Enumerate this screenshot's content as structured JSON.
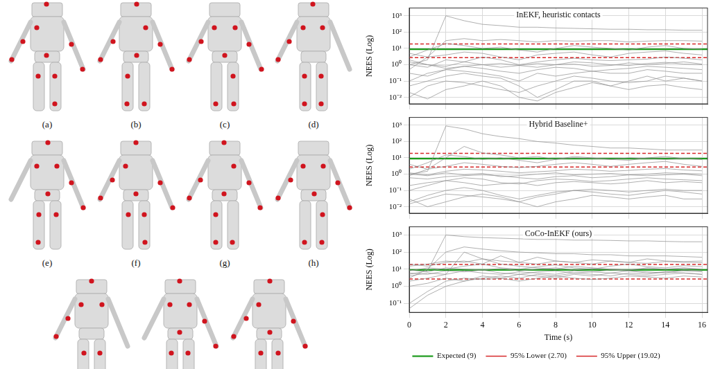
{
  "figure": {
    "captions": [
      "(a)",
      "(b)",
      "(c)",
      "(d)",
      "(e)",
      "(f)",
      "(g)",
      "(h)"
    ]
  },
  "chart_data": [
    {
      "type": "line",
      "title": "InEKF, heuristic contacts",
      "y_label": "NEES (Log)",
      "x": [
        0,
        1,
        2,
        3,
        4,
        5,
        6,
        7,
        8,
        9,
        10,
        11,
        12,
        13,
        14,
        15,
        16
      ],
      "xlim": [
        0,
        16.3
      ],
      "xticks": [
        0,
        2,
        4,
        6,
        8,
        10,
        12,
        14,
        16
      ],
      "ylim": [
        0.004,
        3000
      ],
      "yticks": [
        {
          "value": 0.01,
          "label": "10⁻²"
        },
        {
          "value": 0.1,
          "label": "10⁻¹"
        },
        {
          "value": 1,
          "label": "10⁰"
        },
        {
          "value": 10,
          "label": "10¹"
        },
        {
          "value": 100,
          "label": "10²"
        },
        {
          "value": 1000,
          "label": "10³"
        }
      ],
      "log": "y",
      "grid": true,
      "tick_labels": "y",
      "series": [
        {
          "color": "#8c8c8c",
          "values": [
            1,
            2,
            1000,
            500,
            300,
            250,
            200,
            200,
            180,
            170,
            160,
            150,
            150,
            140,
            140,
            130,
            130
          ]
        },
        {
          "color": "#8c8c8c",
          "values": [
            0.5,
            3,
            30,
            40,
            30,
            35,
            30,
            25,
            30,
            28,
            30,
            30,
            25,
            28,
            30,
            30,
            28
          ]
        },
        {
          "color": "#8c8c8c",
          "values": [
            2,
            1,
            0.8,
            1.5,
            1,
            0.7,
            0.9,
            1.2,
            1,
            1.5,
            1.3,
            1,
            0.9,
            1.2,
            1.4,
            1.1,
            1
          ]
        },
        {
          "color": "#8c8c8c",
          "values": [
            0.3,
            0.2,
            0.5,
            0.4,
            0.3,
            0.2,
            0.1,
            0.3,
            0.2,
            0.3,
            0.4,
            0.3,
            0.3,
            0.5,
            0.4,
            0.3,
            0.3
          ]
        },
        {
          "color": "#8c8c8c",
          "values": [
            0.05,
            0.1,
            0.2,
            0.3,
            0.2,
            0.15,
            0.05,
            0.01,
            0.03,
            0.1,
            0.1,
            0.05,
            0.1,
            0.2,
            0.1,
            0.15,
            0.1
          ]
        },
        {
          "color": "#8c8c8c",
          "values": [
            5,
            3,
            4,
            6,
            5,
            3,
            2,
            4,
            5,
            6,
            4,
            3,
            5,
            6,
            7,
            5,
            4
          ]
        },
        {
          "color": "#8c8c8c",
          "values": [
            0.01,
            0.05,
            0.1,
            0.08,
            0.05,
            0.03,
            0.02,
            0.05,
            0.1,
            0.2,
            0.15,
            0.1,
            0.08,
            0.1,
            0.2,
            0.15,
            0.1
          ]
        },
        {
          "color": "#8c8c8c",
          "values": [
            1,
            0.7,
            2,
            1.5,
            3,
            2,
            1,
            1.5,
            2,
            2.5,
            2,
            1.8,
            2,
            2.2,
            3,
            2.5,
            2
          ]
        },
        {
          "color": "#8c8c8c",
          "values": [
            0.1,
            0.3,
            0.5,
            0.8,
            0.6,
            0.4,
            0.3,
            0.5,
            0.7,
            0.6,
            0.4,
            0.5,
            0.6,
            0.8,
            0.7,
            0.6,
            0.5
          ]
        },
        {
          "color": "#8c8c8c",
          "values": [
            3,
            8,
            20,
            15,
            10,
            12,
            8,
            6,
            10,
            15,
            12,
            10,
            8,
            12,
            15,
            10,
            9
          ]
        },
        {
          "color": "#8c8c8c",
          "values": [
            0.02,
            0.008,
            0.03,
            0.05,
            0.1,
            0.05,
            0.01,
            0.006,
            0.02,
            0.04,
            0.08,
            0.05,
            0.03,
            0.05,
            0.06,
            0.04,
            0.03
          ]
        },
        {
          "color": "#8c8c8c",
          "values": [
            1.5,
            1,
            0.6,
            0.8,
            1,
            1.2,
            0.9,
            0.7,
            1,
            1.1,
            0.8,
            0.9,
            1.3,
            1,
            1.2,
            1.5,
            1.1
          ]
        }
      ],
      "reference_lines": [
        {
          "name": "Expected (9)",
          "value": 9,
          "color": "#1a9a1a",
          "line_style": "solid"
        },
        {
          "name": "95% Lower (2.70)",
          "value": 2.7,
          "color": "#d62728",
          "line_style": "dashed"
        },
        {
          "name": "95% Upper (19.02)",
          "value": 19.02,
          "color": "#d62728",
          "line_style": "dashed"
        }
      ]
    },
    {
      "type": "line",
      "title": "Hybrid Baseline+",
      "y_label": "NEES (Log)",
      "x": [
        0,
        1,
        2,
        3,
        4,
        5,
        6,
        7,
        8,
        9,
        10,
        11,
        12,
        13,
        14,
        15,
        16
      ],
      "xlim": [
        0,
        16.3
      ],
      "xticks": [
        0,
        2,
        4,
        6,
        8,
        10,
        12,
        14,
        16
      ],
      "ylim": [
        0.004,
        3000
      ],
      "yticks": [
        {
          "value": 0.01,
          "label": "10⁻²"
        },
        {
          "value": 0.1,
          "label": "10⁻¹"
        },
        {
          "value": 1,
          "label": "10⁰"
        },
        {
          "value": 10,
          "label": "10¹"
        },
        {
          "value": 100,
          "label": "10²"
        },
        {
          "value": 1000,
          "label": "10³"
        }
      ],
      "log": "y",
      "grid": true,
      "tick_labels": "y",
      "series": [
        {
          "color": "#8c8c8c",
          "values": [
            1,
            1.5,
            900,
            600,
            300,
            200,
            150,
            100,
            80,
            60,
            50,
            40,
            40,
            35,
            30,
            30,
            30
          ]
        },
        {
          "color": "#8c8c8c",
          "values": [
            0.8,
            2,
            10,
            50,
            20,
            15,
            10,
            12,
            8,
            10,
            9,
            8,
            10,
            9,
            8,
            9,
            8
          ]
        },
        {
          "color": "#8c8c8c",
          "values": [
            1,
            0.8,
            1.2,
            0.9,
            1.1,
            0.7,
            0.8,
            1,
            1.2,
            0.9,
            1,
            1.1,
            0.9,
            1,
            1.2,
            1.1,
            1
          ]
        },
        {
          "color": "#8c8c8c",
          "values": [
            0.2,
            0.3,
            0.4,
            0.3,
            0.2,
            0.25,
            0.3,
            0.2,
            0.3,
            0.35,
            0.3,
            0.25,
            0.3,
            0.4,
            0.3,
            0.35,
            0.3
          ]
        },
        {
          "color": "#8c8c8c",
          "values": [
            0.02,
            0.05,
            0.1,
            0.15,
            0.1,
            0.05,
            0.03,
            0.05,
            0.08,
            0.1,
            0.12,
            0.1,
            0.08,
            0.1,
            0.12,
            0.1,
            0.1
          ]
        },
        {
          "color": "#8c8c8c",
          "values": [
            4,
            2,
            3,
            5,
            4,
            3,
            2.5,
            3,
            4,
            5,
            4,
            3,
            4,
            5,
            6,
            4,
            3
          ]
        },
        {
          "color": "#8c8c8c",
          "values": [
            0.015,
            0.03,
            0.06,
            0.05,
            0.04,
            0.03,
            0.02,
            0.04,
            0.06,
            0.1,
            0.08,
            0.06,
            0.05,
            0.07,
            0.1,
            0.08,
            0.06
          ]
        },
        {
          "color": "#8c8c8c",
          "values": [
            1.2,
            0.9,
            1.5,
            2,
            1.8,
            1.5,
            1.2,
            1.4,
            1.6,
            2,
            1.8,
            1.5,
            1.7,
            2,
            2.2,
            1.8,
            1.6
          ]
        },
        {
          "color": "#8c8c8c",
          "values": [
            0.1,
            0.2,
            0.4,
            0.6,
            0.5,
            0.3,
            0.25,
            0.4,
            0.5,
            0.45,
            0.35,
            0.4,
            0.5,
            0.6,
            0.5,
            0.45,
            0.4
          ]
        },
        {
          "color": "#8c8c8c",
          "values": [
            2,
            5,
            15,
            12,
            8,
            10,
            7,
            5,
            8,
            12,
            10,
            8,
            7,
            10,
            12,
            9,
            8
          ]
        },
        {
          "color": "#8c8c8c",
          "values": [
            0.03,
            0.01,
            0.02,
            0.04,
            0.06,
            0.04,
            0.02,
            0.01,
            0.02,
            0.03,
            0.05,
            0.04,
            0.03,
            0.04,
            0.05,
            0.03,
            0.03
          ]
        },
        {
          "color": "#8c8c8c",
          "values": [
            0.6,
            0.5,
            0.7,
            0.8,
            0.9,
            0.8,
            0.6,
            0.5,
            0.7,
            0.8,
            0.6,
            0.7,
            0.9,
            0.8,
            0.9,
            1,
            0.8
          ]
        }
      ],
      "reference_lines": [
        {
          "name": "Expected (9)",
          "value": 9,
          "color": "#1a9a1a",
          "line_style": "solid"
        },
        {
          "name": "95% Lower (2.70)",
          "value": 2.7,
          "color": "#d62728",
          "line_style": "dashed"
        },
        {
          "name": "95% Upper (19.02)",
          "value": 19.02,
          "color": "#d62728",
          "line_style": "dashed"
        }
      ]
    },
    {
      "type": "line",
      "title": "CoCo-InEKF (ours)",
      "y_label": "NEES (Log)",
      "x_label": "Time (s)",
      "x": [
        0,
        1,
        2,
        3,
        4,
        5,
        6,
        7,
        8,
        9,
        10,
        11,
        12,
        13,
        14,
        15,
        16
      ],
      "xlim": [
        0,
        16.3
      ],
      "xticks": [
        0,
        2,
        4,
        6,
        8,
        10,
        12,
        14,
        16
      ],
      "ylim": [
        0.03,
        3000
      ],
      "yticks": [
        {
          "value": 0.1,
          "label": "10⁻¹"
        },
        {
          "value": 1,
          "label": "10⁰"
        },
        {
          "value": 10,
          "label": "10¹"
        },
        {
          "value": 100,
          "label": "10²"
        },
        {
          "value": 1000,
          "label": "10³"
        }
      ],
      "log": "y",
      "grid": true,
      "legend": "bottom",
      "series": [
        {
          "color": "#8c8c8c",
          "values": [
            5,
            8,
            1000,
            800,
            700,
            650,
            600,
            550,
            550,
            500,
            500,
            480,
            450,
            450,
            420,
            400,
            400
          ]
        },
        {
          "color": "#8c8c8c",
          "values": [
            3,
            10,
            100,
            200,
            150,
            120,
            100,
            90,
            80,
            80,
            70,
            70,
            60,
            60,
            60,
            55,
            50
          ]
        },
        {
          "color": "#8c8c8c",
          "values": [
            8,
            12,
            10,
            15,
            20,
            12,
            10,
            14,
            18,
            12,
            10,
            15,
            20,
            14,
            12,
            16,
            14
          ]
        },
        {
          "color": "#8c8c8c",
          "values": [
            4,
            6,
            5,
            8,
            6,
            5,
            7,
            6,
            5,
            8,
            7,
            6,
            8,
            7,
            6,
            9,
            8
          ]
        },
        {
          "color": "#8c8c8c",
          "values": [
            0.05,
            0.3,
            1,
            2,
            3,
            4,
            3,
            5,
            4,
            6,
            5,
            4,
            6,
            5,
            7,
            6,
            5
          ]
        },
        {
          "color": "#8c8c8c",
          "values": [
            15,
            20,
            30,
            25,
            40,
            30,
            25,
            50,
            30,
            25,
            35,
            30,
            25,
            40,
            30,
            28,
            30
          ]
        },
        {
          "color": "#8c8c8c",
          "values": [
            0.1,
            0.5,
            2,
            3,
            2.5,
            3,
            2,
            3,
            4,
            3,
            2.5,
            3,
            4,
            3.5,
            3,
            4,
            3.5
          ]
        },
        {
          "color": "#8c8c8c",
          "values": [
            9,
            7,
            12,
            10,
            9,
            11,
            8,
            10,
            12,
            9,
            11,
            10,
            9,
            12,
            10,
            11,
            10
          ]
        },
        {
          "color": "#8c8c8c",
          "values": [
            2,
            3,
            5,
            100,
            40,
            20,
            15,
            12,
            10,
            15,
            12,
            10,
            9,
            11,
            10,
            12,
            10
          ]
        },
        {
          "color": "#8c8c8c",
          "values": [
            1,
            1.5,
            3,
            2,
            4,
            3,
            5,
            4,
            3,
            5,
            4,
            6,
            5,
            4,
            5,
            6,
            5
          ]
        },
        {
          "color": "#8c8c8c",
          "values": [
            20,
            15,
            25,
            30,
            20,
            60,
            25,
            20,
            30,
            25,
            20,
            30,
            25,
            22,
            28,
            25,
            24
          ]
        },
        {
          "color": "#8c8c8c",
          "values": [
            6,
            5,
            8,
            7,
            9,
            6,
            5,
            7,
            8,
            6,
            7,
            9,
            8,
            6,
            7,
            8,
            7
          ]
        }
      ],
      "reference_lines": [
        {
          "name": "Expected (9)",
          "value": 9,
          "color": "#1a9a1a",
          "line_style": "solid"
        },
        {
          "name": "95% Lower (2.70)",
          "value": 2.7,
          "color": "#d62728",
          "line_style": "dashed"
        },
        {
          "name": "95% Upper (19.02)",
          "value": 19.02,
          "color": "#d62728",
          "line_style": "dashed"
        }
      ]
    }
  ]
}
